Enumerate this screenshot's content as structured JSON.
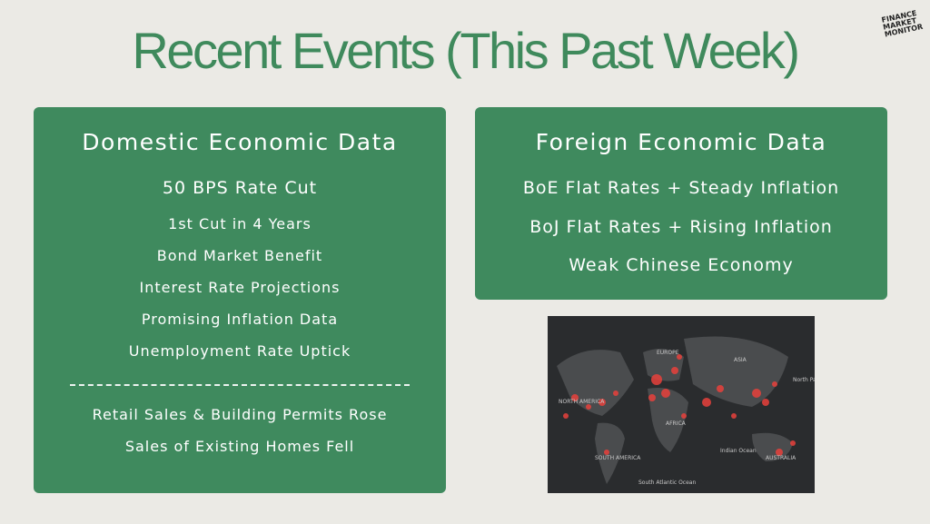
{
  "title": "Recent Events (This Past Week)",
  "logo": "FINANCE MARKET MONITOR",
  "domestic": {
    "heading": "Domestic Economic Data",
    "headline": "50 BPS Rate Cut",
    "items": [
      "1st Cut in 4 Years",
      "Bond Market Benefit",
      "Interest Rate Projections",
      "Promising Inflation Data",
      "Unemployment Rate Uptick"
    ],
    "more_items": [
      "Retail Sales & Building Permits Rose",
      "Sales of Existing Homes Fell"
    ]
  },
  "foreign": {
    "heading": "Foreign Economic Data",
    "items": [
      "BoE Flat Rates + Steady Inflation",
      "BoJ Flat Rates + Rising Inflation",
      "Weak Chinese Economy"
    ]
  },
  "map": {
    "labels": [
      "NORTH AMERICA",
      "SOUTH AMERICA",
      "EUROPE",
      "AFRICA",
      "ASIA",
      "AUSTRALIA",
      "Indian Ocean",
      "South Atlantic Ocean",
      "North Pacific Ocean"
    ]
  }
}
